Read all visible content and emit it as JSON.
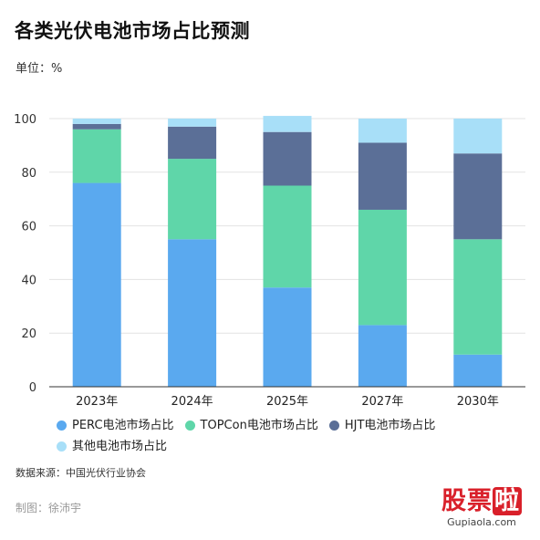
{
  "header": {
    "title": "各类光伏电池市场占比预测",
    "unit": "单位：%"
  },
  "footer": {
    "source": "数据来源：中国光伏行业协会",
    "maker": "制图：徐沛宇"
  },
  "watermark": {
    "text_main": "股票",
    "text_accent": "啦",
    "url": "Gupiaola.com"
  },
  "chart_data": {
    "type": "bar",
    "stacked": true,
    "categories": [
      "2023年",
      "2024年",
      "2025年",
      "2027年",
      "2030年"
    ],
    "series": [
      {
        "name": "PERC电池市场占比",
        "color": "#5aa9ef",
        "values": [
          76,
          55,
          37,
          23,
          12
        ]
      },
      {
        "name": "TOPCon电池市场占比",
        "color": "#5fd6a9",
        "values": [
          20,
          30,
          38,
          43,
          43
        ]
      },
      {
        "name": "HJT电池市场占比",
        "color": "#5b6f97",
        "values": [
          2,
          12,
          20,
          25,
          32
        ]
      },
      {
        "name": "其他电池市场占比",
        "color": "#a8dff8",
        "values": [
          2,
          3,
          6,
          9,
          13
        ]
      }
    ],
    "yticks": [
      0,
      20,
      40,
      60,
      80,
      100
    ],
    "ylim": [
      0,
      100
    ],
    "grid": true,
    "legend_position": "bottom"
  }
}
